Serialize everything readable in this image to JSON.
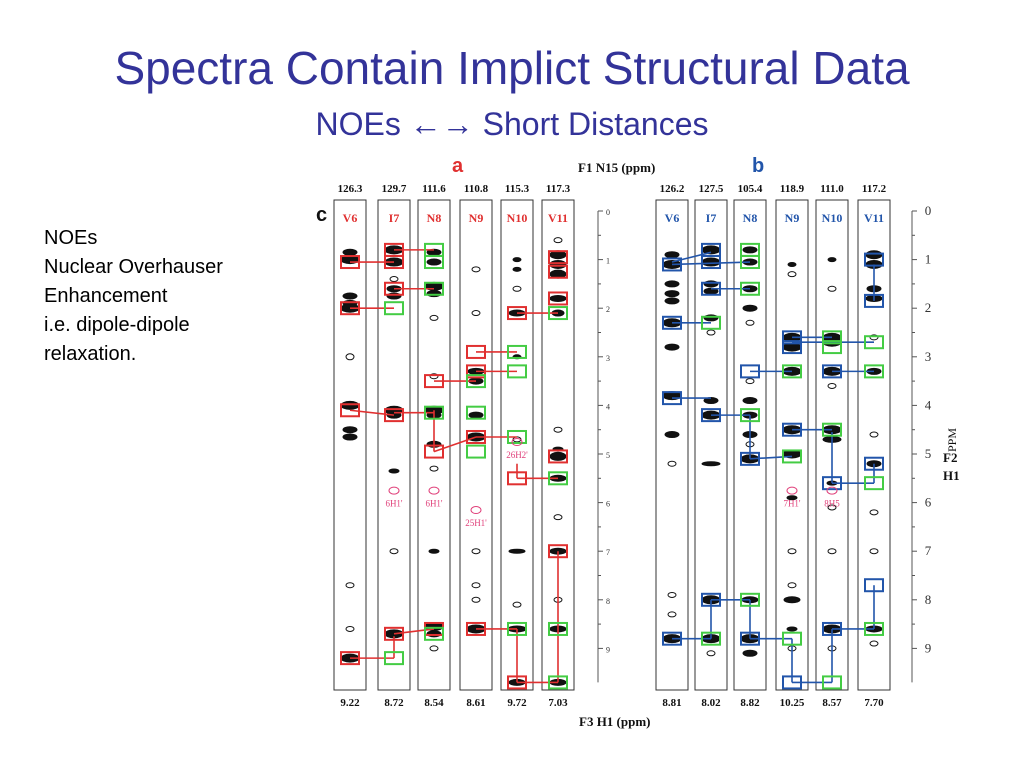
{
  "slide": {
    "title": "Spectra Contain Implict Structural Data",
    "subtitle_left": "NOEs",
    "subtitle_arrow": "←→",
    "subtitle_right": "Short Distances"
  },
  "notes": [
    "NOEs",
    "Nuclear Overhauser",
    "Enhancement",
    "i.e. dipole-dipole",
    "relaxation."
  ],
  "figure": {
    "panel_c_label": "c",
    "panel_a_label": "a",
    "panel_b_label": "b",
    "f1_label": "F1 N15 (ppm)",
    "f3_label": "F3 H1 (ppm)",
    "ppm_axis_label": "PPM",
    "f2_label": "F2",
    "h1_label": "H1",
    "colors": {
      "a_accent": "#e03030",
      "b_accent": "#2255aa",
      "green": "#44cc44",
      "pink": "#e0407a"
    },
    "panel_a": {
      "n15": [
        "126.3",
        "129.7",
        "111.6",
        "110.8",
        "115.3",
        "117.3"
      ],
      "residues": [
        "V6",
        "I7",
        "N8",
        "N9",
        "N10",
        "V11"
      ],
      "h1": [
        "9.22",
        "8.72",
        "8.54",
        "8.61",
        "9.72",
        "7.03"
      ],
      "annotations": [
        "6H1'",
        "6H1'",
        "25H1'",
        "26H2'"
      ]
    },
    "panel_b": {
      "n15": [
        "126.2",
        "127.5",
        "105.4",
        "118.9",
        "111.0",
        "117.2"
      ],
      "residues": [
        "V6",
        "I7",
        "N8",
        "N9",
        "N10",
        "V11"
      ],
      "h1": [
        "8.81",
        "8.02",
        "8.82",
        "10.25",
        "8.57",
        "7.70"
      ],
      "annotations": [
        "7H1'",
        "8H5"
      ]
    },
    "ppm_ticks": [
      "0",
      "1",
      "2",
      "3",
      "4",
      "5",
      "6",
      "7",
      "8",
      "9"
    ]
  }
}
